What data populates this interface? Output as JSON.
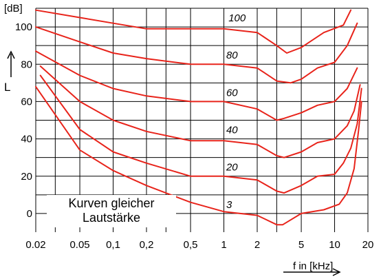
{
  "chart_data": {
    "type": "line",
    "title": "",
    "ylabel": "L",
    "y_unit": "[dB]",
    "xlabel": "f in [kHz]",
    "x_scale": "log",
    "xlim": [
      0.02,
      20
    ],
    "ylim": [
      -10,
      110
    ],
    "grid": true,
    "x_ticks": [
      {
        "value": 0.02,
        "label": "0.02"
      },
      {
        "value": 0.05,
        "label": "0.05"
      },
      {
        "value": 0.1,
        "label": "0,1"
      },
      {
        "value": 0.2,
        "label": "0,2"
      },
      {
        "value": 0.5,
        "label": "0,5"
      },
      {
        "value": 1,
        "label": "1"
      },
      {
        "value": 2,
        "label": "2"
      },
      {
        "value": 5,
        "label": "5"
      },
      {
        "value": 10,
        "label": "10"
      },
      {
        "value": 20,
        "label": "20"
      }
    ],
    "y_ticks": [
      {
        "value": 0,
        "label": "0"
      },
      {
        "value": 20,
        "label": "20"
      },
      {
        "value": 40,
        "label": "40"
      },
      {
        "value": 60,
        "label": "60"
      },
      {
        "value": 80,
        "label": "80"
      },
      {
        "value": 100,
        "label": "100"
      }
    ],
    "series": [
      {
        "name": "100",
        "label_at": [
          1.1,
          103
        ],
        "x": [
          0.02,
          0.05,
          0.1,
          0.2,
          0.5,
          1,
          2,
          3,
          3.7,
          5,
          8,
          12,
          14
        ],
        "y": [
          109,
          105,
          102,
          99,
          99,
          99,
          97,
          90,
          86,
          89,
          97,
          101,
          109
        ]
      },
      {
        "name": "80",
        "label_at": [
          1.05,
          83
        ],
        "x": [
          0.02,
          0.05,
          0.1,
          0.2,
          0.5,
          1,
          2,
          3,
          4,
          5,
          7,
          10,
          13,
          16
        ],
        "y": [
          100,
          92,
          86,
          83,
          80,
          80,
          78,
          71,
          70,
          72,
          78,
          81,
          90,
          102
        ]
      },
      {
        "name": "60",
        "label_at": [
          1.05,
          63
        ],
        "x": [
          0.02,
          0.05,
          0.1,
          0.2,
          0.5,
          1,
          2,
          3,
          3.5,
          5,
          7,
          10,
          13,
          16
        ],
        "y": [
          87,
          74,
          67,
          63,
          60,
          60,
          56,
          50,
          51,
          54,
          58,
          60,
          67,
          78
        ]
      },
      {
        "name": "40",
        "label_at": [
          1.05,
          43
        ],
        "x": [
          0.022,
          0.05,
          0.1,
          0.2,
          0.5,
          1,
          2,
          3,
          3.5,
          5,
          7,
          10,
          13,
          15,
          17
        ],
        "y": [
          79,
          60,
          50,
          44,
          39,
          39,
          37,
          31,
          30,
          33,
          38,
          40,
          47,
          55,
          69
        ]
      },
      {
        "name": "20",
        "label_at": [
          1.05,
          23
        ],
        "x": [
          0.022,
          0.05,
          0.1,
          0.2,
          0.5,
          1,
          2,
          3,
          3.5,
          5,
          7,
          10,
          12,
          14,
          16,
          17.5
        ],
        "y": [
          74,
          45,
          33,
          27,
          20,
          20,
          18,
          12,
          11,
          15,
          20,
          21,
          27,
          35,
          48,
          67
        ]
      },
      {
        "name": "3",
        "label_at": [
          1.05,
          3
        ],
        "x": [
          0.02,
          0.05,
          0.1,
          0.2,
          0.5,
          1,
          2,
          3,
          3.4,
          5,
          8,
          11,
          13,
          15,
          16.5,
          17.5
        ],
        "y": [
          68,
          34,
          23,
          15,
          6,
          1,
          -1,
          -6,
          -6,
          0,
          2,
          5,
          11,
          24,
          45,
          60
        ]
      }
    ]
  },
  "caption": {
    "line1": "Kurven gleicher",
    "line2": "Lautstärke"
  },
  "colors": {
    "curve": "#e8231a",
    "grid": "#000000",
    "axis": "#000000"
  }
}
